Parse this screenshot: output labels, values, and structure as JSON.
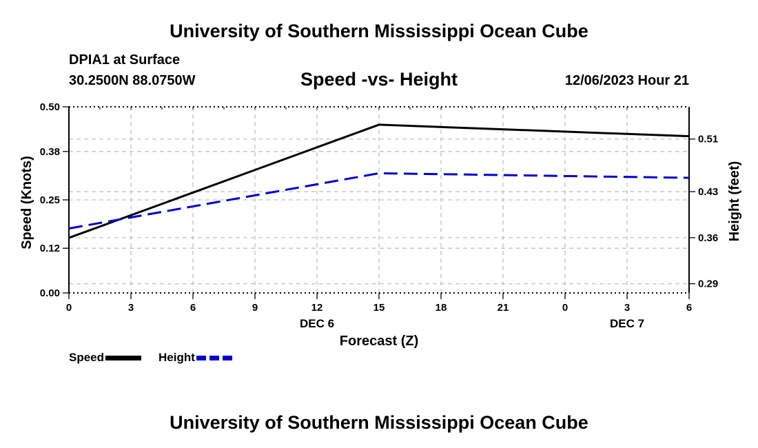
{
  "header": {
    "title": "University of Southern Mississippi Ocean Cube",
    "station": "DPIA1 at Surface",
    "coordinates": "30.2500N  88.0750W",
    "chart_title": "Speed -vs- Height",
    "datetime": "12/06/2023 Hour 21"
  },
  "footer": {
    "title": "University of Southern Mississippi Ocean Cube"
  },
  "legend": {
    "speed_label": "Speed",
    "height_label": "Height"
  },
  "colors": {
    "speed": "#000000",
    "height": "#0000d0",
    "grid": "#c0c0c0"
  },
  "chart_data": {
    "type": "line",
    "title": "Speed -vs- Height",
    "xlabel": "Forecast (Z)",
    "ylabel": "Speed (Knots)",
    "y2label": "Height (feet)",
    "x": [
      0,
      3,
      6,
      9,
      12,
      15,
      18,
      21,
      24,
      27,
      30
    ],
    "x_tick_labels": [
      "0",
      "3",
      "6",
      "9",
      "12",
      "15",
      "18",
      "21",
      "0",
      "3",
      "6"
    ],
    "date_labels": [
      {
        "x": 12,
        "label": "DEC 6"
      },
      {
        "x": 27,
        "label": "DEC 7"
      }
    ],
    "xlim": [
      0,
      30
    ],
    "ylim": [
      0,
      0.5
    ],
    "y_ticks": [
      0.0,
      0.12,
      0.25,
      0.38,
      0.5
    ],
    "y_tick_labels": [
      "0.00",
      "0.12",
      "0.25",
      "0.38",
      "0.50"
    ],
    "y2lim": [
      0.276,
      0.559
    ],
    "y2_ticks": [
      0.29,
      0.36,
      0.43,
      0.51
    ],
    "y2_tick_labels": [
      "0.29",
      "0.36",
      "0.43",
      "0.51"
    ],
    "series": [
      {
        "name": "Speed",
        "axis": "left",
        "style": "solid",
        "x": [
          0,
          15,
          30
        ],
        "values": [
          0.148,
          0.452,
          0.421
        ]
      },
      {
        "name": "Height",
        "axis": "right",
        "style": "dashed",
        "x": [
          0,
          15,
          30
        ],
        "values": [
          0.374,
          0.458,
          0.451
        ]
      }
    ]
  }
}
